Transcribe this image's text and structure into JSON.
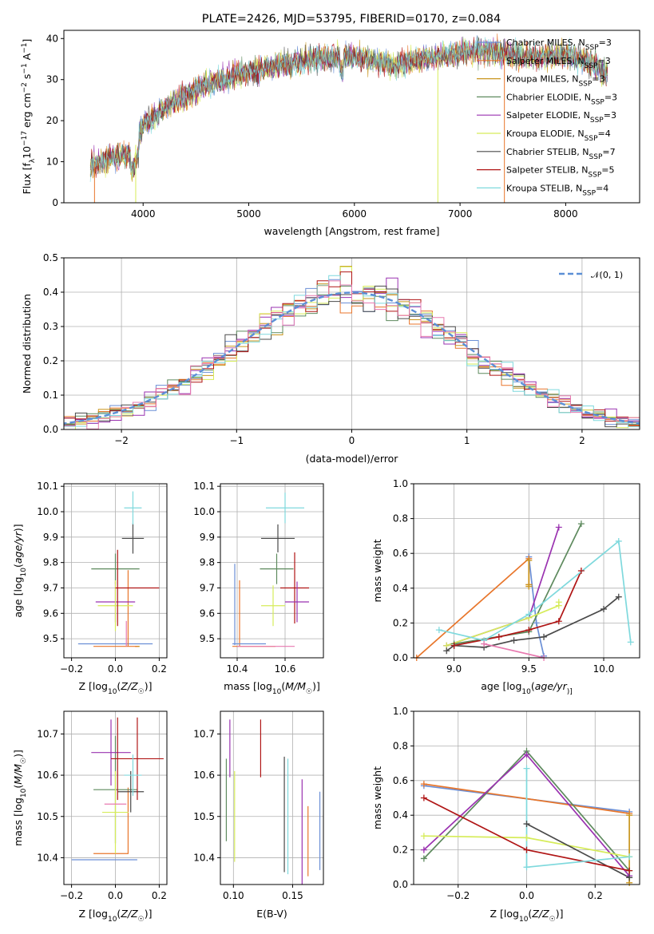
{
  "figure_title": "PLATE=2426, MJD=53795, FIBERID=0170, z=0.084",
  "colors": {
    "Chabrier MILES": "#6b8fd6",
    "Salpeter MILES": "#e8762b",
    "Kroupa MILES": "#c9961f",
    "Chabrier ELODIE": "#5e8a5e",
    "Salpeter ELODIE": "#9a32b0",
    "Kroupa ELODIE": "#d6ec5a",
    "Chabrier STELIB": "#4a4a4a",
    "Salpeter STELIB": "#b01515",
    "Kroupa STELIB": "#7fd9dd",
    "pink": "#e87ab0"
  },
  "chart_data": [
    {
      "id": "spectrum",
      "type": "line",
      "xlabel": "wavelength [Angstrom, rest frame]",
      "ylabel_parts": [
        "Flux [f",
        "λ",
        "10",
        "−17",
        " erg cm",
        "−2",
        " s",
        "−1",
        " A",
        "−1",
        "]"
      ],
      "xlim": [
        3250,
        8700
      ],
      "ylim": [
        0,
        42
      ],
      "xticks": [
        4000,
        5000,
        6000,
        7000,
        8000
      ],
      "yticks": [
        0,
        10,
        20,
        30,
        40
      ],
      "legend_placement": "top-right",
      "legend": [
        {
          "name": "Chabrier MILES",
          "nssp": "3"
        },
        {
          "name": "Salpeter MILES",
          "nssp": "3"
        },
        {
          "name": "Kroupa MILES",
          "nssp": "3"
        },
        {
          "name": "Chabrier ELODIE",
          "nssp": "3"
        },
        {
          "name": "Salpeter ELODIE",
          "nssp": "3"
        },
        {
          "name": "Kroupa ELODIE",
          "nssp": "4"
        },
        {
          "name": "Chabrier STELIB",
          "nssp": "7"
        },
        {
          "name": "Salpeter STELIB",
          "nssp": "5"
        },
        {
          "name": "Kroupa STELIB",
          "nssp": "4"
        }
      ],
      "continuum": {
        "x": [
          3500,
          3700,
          3900,
          4000,
          4200,
          4400,
          4600,
          4800,
          5000,
          5200,
          5400,
          5600,
          5800,
          6000,
          6200,
          6400,
          6600,
          6800,
          7000,
          7200,
          7400,
          7600,
          7800,
          8000,
          8200,
          8400
        ],
        "y": [
          9,
          11,
          12,
          19,
          23,
          26,
          29,
          30.5,
          32,
          33,
          34,
          35,
          35.5,
          35.5,
          34.5,
          33.5,
          35,
          35.5,
          36.5,
          37,
          36.5,
          35.5,
          35.5,
          36,
          34.5,
          31.5
        ]
      },
      "drops": [
        {
          "x": 3540,
          "y": 0,
          "series": "Salpeter MILES"
        },
        {
          "x": 3930,
          "y": 0,
          "series": "Kroupa ELODIE"
        },
        {
          "x": 6790,
          "y": 0,
          "series": "Kroupa ELODIE"
        },
        {
          "x": 7420,
          "y": 0,
          "series": "Salpeter MILES"
        }
      ]
    },
    {
      "id": "residuals",
      "type": "step",
      "xlabel": "(data-model)/error",
      "ylabel": "Normed distribution",
      "xlim": [
        -2.5,
        2.5
      ],
      "ylim": [
        0,
        0.5
      ],
      "xticks": [
        -2,
        -1,
        0,
        1,
        2
      ],
      "yticks": [
        0.0,
        0.1,
        0.2,
        0.3,
        0.4,
        0.5
      ],
      "legend_placement": "top-right",
      "reference_label": "𝒩(0, 1)",
      "reference": {
        "type": "gaussian",
        "mean": 0,
        "sigma": 1
      }
    },
    {
      "id": "age-vs-Z",
      "type": "errorbar",
      "xlabel_parts": [
        "Z [log",
        "10",
        "(",
        "Z/Z",
        "☉",
        ")]"
      ],
      "ylabel_parts": [
        "age  [log",
        "10",
        "(",
        "age/yr",
        ")]"
      ],
      "xlim": [
        -0.235,
        0.235
      ],
      "ylim": [
        9.425,
        10.11
      ],
      "xticks": [
        -0.2,
        0.0,
        0.2
      ],
      "yticks": [
        9.5,
        9.6,
        9.7,
        9.8,
        9.9,
        10.0,
        10.1
      ],
      "points": [
        {
          "series": "Chabrier MILES",
          "x": 0.0,
          "y": 9.48,
          "xerr": 0.17,
          "yerr": 0.0
        },
        {
          "series": "Salpeter MILES",
          "x": 0.1,
          "y": 9.47,
          "xerr": 0.01,
          "yerr": 0.0
        },
        {
          "series": "Kroupa MILES",
          "x": 0.1,
          "y": 9.47,
          "xerr": 0.01,
          "yerr": 0.0
        },
        {
          "series": "Salpeter MILES",
          "x": 0.0,
          "y": 9.47,
          "xerr": 0.1,
          "yerr": 0.0
        },
        {
          "series": "Salpeter MILES",
          "x": 0.058,
          "y": 9.62,
          "xerr": 0.0,
          "yerr": 0.15
        },
        {
          "series": "Chabrier ELODIE",
          "x": 0.0,
          "y": 9.775,
          "xerr": 0.11,
          "yerr": 0.06
        },
        {
          "series": "Salpeter ELODIE",
          "x": 0.0,
          "y": 9.645,
          "xerr": 0.09,
          "yerr": 0.08
        },
        {
          "series": "Kroupa ELODIE",
          "x": 0.0,
          "y": 9.63,
          "xerr": 0.08,
          "yerr": 0.1
        },
        {
          "series": "Chabrier STELIB",
          "x": 0.08,
          "y": 9.895,
          "xerr": 0.05,
          "yerr": 0.06
        },
        {
          "series": "Salpeter STELIB",
          "x": 0.1,
          "y": 9.7,
          "xerr": 0.1,
          "yerr": 0.0
        },
        {
          "series": "Salpeter STELIB",
          "x": 0.01,
          "y": 9.7,
          "xerr": 0.0,
          "yerr": 0.15
        },
        {
          "series": "Kroupa STELIB",
          "x": 0.08,
          "y": 10.015,
          "xerr": 0.04,
          "yerr": 0.065
        },
        {
          "series": "pink",
          "x": 0.05,
          "y": 9.52,
          "xerr": 0.0,
          "yerr": 0.05
        }
      ]
    },
    {
      "id": "age-vs-mass",
      "type": "errorbar",
      "xlabel_parts": [
        "mass [log",
        "10",
        "(",
        "M/M",
        "☉",
        ")]"
      ],
      "xlim": [
        10.33,
        10.76
      ],
      "ylim": [
        9.425,
        10.11
      ],
      "xticks": [
        10.4,
        10.6
      ],
      "yticks": [
        9.5,
        9.6,
        9.7,
        9.8,
        9.9,
        10.0,
        10.1
      ],
      "points": [
        {
          "series": "Chabrier MILES",
          "x": 10.39,
          "y": 9.635,
          "xerr": 0.0,
          "yerr": 0.16
        },
        {
          "series": "Salpeter MILES",
          "x": 10.41,
          "y": 9.6,
          "xerr": 0.0,
          "yerr": 0.13
        },
        {
          "series": "Salpeter MILES",
          "x": 10.47,
          "y": 9.47,
          "xerr": 0.09,
          "yerr": 0.0
        },
        {
          "series": "Chabrier MILES",
          "x": 10.45,
          "y": 9.48,
          "xerr": 0.07,
          "yerr": 0.0
        },
        {
          "series": "pink",
          "x": 10.52,
          "y": 9.47,
          "xerr": 0.12,
          "yerr": 0.0
        },
        {
          "series": "Kroupa ELODIE",
          "x": 10.55,
          "y": 9.63,
          "xerr": 0.05,
          "yerr": 0.08
        },
        {
          "series": "Chabrier ELODIE",
          "x": 10.565,
          "y": 9.775,
          "xerr": 0.07,
          "yerr": 0.06
        },
        {
          "series": "Chabrier STELIB",
          "x": 10.57,
          "y": 9.895,
          "xerr": 0.07,
          "yerr": 0.055
        },
        {
          "series": "Kroupa STELIB",
          "x": 10.6,
          "y": 10.015,
          "xerr": 0.08,
          "yerr": 0.06
        },
        {
          "series": "Salpeter STELIB",
          "x": 10.64,
          "y": 9.7,
          "xerr": 0.06,
          "yerr": 0.14
        },
        {
          "series": "Salpeter ELODIE",
          "x": 10.65,
          "y": 9.645,
          "xerr": 0.05,
          "yerr": 0.08
        }
      ]
    },
    {
      "id": "weight-vs-age",
      "type": "line",
      "xlabel_parts": [
        "age  [log",
        "10",
        "(",
        "age/yr",
        ")]"
      ],
      "ylabel": "mass weight",
      "xlim": [
        8.73,
        10.24
      ],
      "ylim": [
        0,
        1.0
      ],
      "xticks": [
        9.0,
        9.5,
        10.0
      ],
      "yticks": [
        0.0,
        0.2,
        0.4,
        0.6,
        0.8,
        1.0
      ],
      "series": [
        {
          "name": "Chabrier MILES",
          "x": [
            9.5,
            9.55,
            9.6
          ],
          "y": [
            0.58,
            0.2,
            0.01
          ]
        },
        {
          "name": "Salpeter MILES",
          "x": [
            8.75,
            9.5,
            9.5
          ],
          "y": [
            0.0,
            0.57,
            0.42
          ]
        },
        {
          "name": "Kroupa MILES",
          "x": [
            9.5,
            9.5,
            9.5
          ],
          "y": [
            0.56,
            0.42,
            0.41
          ]
        },
        {
          "name": "Chabrier ELODIE",
          "x": [
            9.0,
            9.5,
            9.85
          ],
          "y": [
            0.08,
            0.15,
            0.77
          ]
        },
        {
          "name": "Salpeter ELODIE",
          "x": [
            8.95,
            9.5,
            9.7
          ],
          "y": [
            0.07,
            0.23,
            0.75
          ]
        },
        {
          "name": "Kroupa ELODIE",
          "x": [
            8.95,
            9.5,
            9.7,
            9.7
          ],
          "y": [
            0.07,
            0.23,
            0.3,
            0.32
          ]
        },
        {
          "name": "Chabrier STELIB",
          "x": [
            8.95,
            9.0,
            9.2,
            9.4,
            9.6,
            10.0,
            10.1
          ],
          "y": [
            0.04,
            0.07,
            0.06,
            0.1,
            0.12,
            0.28,
            0.35
          ]
        },
        {
          "name": "Salpeter STELIB",
          "x": [
            9.0,
            9.3,
            9.5,
            9.7,
            9.85
          ],
          "y": [
            0.07,
            0.12,
            0.16,
            0.21,
            0.5
          ]
        },
        {
          "name": "Kroupa STELIB",
          "x": [
            8.9,
            9.2,
            9.5,
            10.1,
            10.18
          ],
          "y": [
            0.16,
            0.1,
            0.25,
            0.67,
            0.09
          ]
        },
        {
          "name": "pink",
          "x": [
            9.2,
            9.6
          ],
          "y": [
            0.08,
            0.0
          ]
        }
      ]
    },
    {
      "id": "mass-vs-Z",
      "type": "errorbar",
      "xlabel_parts": [
        "Z [log",
        "10",
        "(",
        "Z/Z",
        "☉",
        ")]"
      ],
      "ylabel_parts": [
        "mass [log",
        "10",
        "(",
        "M/M",
        "☉",
        ")]"
      ],
      "xlim": [
        -0.235,
        0.235
      ],
      "ylim": [
        10.335,
        10.755
      ],
      "xticks": [
        -0.2,
        0.0,
        0.2
      ],
      "yticks": [
        10.4,
        10.5,
        10.6,
        10.7
      ],
      "points": [
        {
          "series": "Chabrier MILES",
          "x": -0.05,
          "y": 10.395,
          "xerr": 0.15,
          "yerr": 0.0
        },
        {
          "series": "Salpeter MILES",
          "x": 0.058,
          "y": 10.49,
          "xerr": 0.0,
          "yerr": 0.08
        },
        {
          "series": "Salpeter MILES",
          "x": -0.02,
          "y": 10.41,
          "xerr": 0.08,
          "yerr": 0.0
        },
        {
          "series": "Chabrier ELODIE",
          "x": 0.0,
          "y": 10.565,
          "xerr": 0.1,
          "yerr": 0.13
        },
        {
          "series": "Salpeter ELODIE",
          "x": -0.02,
          "y": 10.655,
          "xerr": 0.09,
          "yerr": 0.08
        },
        {
          "series": "Kroupa ELODIE",
          "x": 0.0,
          "y": 10.51,
          "xerr": 0.06,
          "yerr": 0.1
        },
        {
          "series": "Chabrier STELIB",
          "x": 0.07,
          "y": 10.56,
          "xerr": 0.06,
          "yerr": 0.05
        },
        {
          "series": "Salpeter STELIB",
          "x": 0.1,
          "y": 10.64,
          "xerr": 0.12,
          "yerr": 0.1
        },
        {
          "series": "Salpeter STELIB",
          "x": 0.01,
          "y": 10.64,
          "xerr": 0.0,
          "yerr": 0.1
        },
        {
          "series": "Kroupa STELIB",
          "x": 0.08,
          "y": 10.6,
          "xerr": 0.04,
          "yerr": 0.05
        },
        {
          "series": "pink",
          "x": 0.0,
          "y": 10.53,
          "xerr": 0.05,
          "yerr": 0.0
        }
      ]
    },
    {
      "id": "mass-vs-EBV",
      "type": "errorbar",
      "xlabel": "E(B-V)",
      "xlim": [
        0.089,
        0.176
      ],
      "ylim": [
        10.335,
        10.755
      ],
      "xticks": [
        0.1,
        0.15
      ],
      "yticks": [
        10.4,
        10.5,
        10.6,
        10.7
      ],
      "points": [
        {
          "series": "Chabrier ELODIE",
          "x": 0.094,
          "y": 10.54,
          "xerr": 0.0,
          "yerr": 0.1
        },
        {
          "series": "Salpeter ELODIE",
          "x": 0.097,
          "y": 10.665,
          "xerr": 0.0,
          "yerr": 0.07
        },
        {
          "series": "Kroupa ELODIE",
          "x": 0.101,
          "y": 10.5,
          "xerr": 0.0,
          "yerr": 0.11
        },
        {
          "series": "Salpeter STELIB",
          "x": 0.123,
          "y": 10.665,
          "xerr": 0.0,
          "yerr": 0.07
        },
        {
          "series": "Chabrier STELIB",
          "x": 0.143,
          "y": 10.505,
          "xerr": 0.0,
          "yerr": 0.14
        },
        {
          "series": "Kroupa STELIB",
          "x": 0.146,
          "y": 10.5,
          "xerr": 0.0,
          "yerr": 0.14
        },
        {
          "series": "Salpeter ELODIE",
          "x": 0.158,
          "y": 10.45,
          "xerr": 0.0,
          "yerr": 0.14
        },
        {
          "series": "Salpeter MILES",
          "x": 0.163,
          "y": 10.44,
          "xerr": 0.0,
          "yerr": 0.085
        },
        {
          "series": "Chabrier MILES",
          "x": 0.173,
          "y": 10.465,
          "xerr": 0.0,
          "yerr": 0.095
        }
      ]
    },
    {
      "id": "weight-vs-Z",
      "type": "line",
      "xlabel_parts": [
        "Z [log",
        "10",
        "(",
        "Z/Z",
        "☉",
        ")]"
      ],
      "ylabel": "mass weight",
      "xlim": [
        -0.33,
        0.33
      ],
      "ylim": [
        0,
        1.0
      ],
      "xticks": [
        -0.2,
        0.0,
        0.2
      ],
      "yticks": [
        0.0,
        0.2,
        0.4,
        0.6,
        0.8,
        1.0
      ],
      "series": [
        {
          "name": "Chabrier MILES",
          "x": [
            -0.3,
            0.3
          ],
          "y": [
            0.57,
            0.42
          ]
        },
        {
          "name": "Salpeter MILES",
          "x": [
            -0.3,
            0.3
          ],
          "y": [
            0.58,
            0.41
          ]
        },
        {
          "name": "Kroupa MILES",
          "x": [
            0.3,
            0.3
          ],
          "y": [
            0.4,
            0.01
          ]
        },
        {
          "name": "Chabrier ELODIE",
          "x": [
            -0.3,
            0.0,
            0.3
          ],
          "y": [
            0.15,
            0.77,
            0.08
          ]
        },
        {
          "name": "Salpeter ELODIE",
          "x": [
            -0.3,
            0.0,
            0.3
          ],
          "y": [
            0.2,
            0.75,
            0.05
          ]
        },
        {
          "name": "Kroupa ELODIE",
          "x": [
            -0.3,
            0.0,
            0.3
          ],
          "y": [
            0.28,
            0.27,
            0.16
          ]
        },
        {
          "name": "Chabrier STELIB",
          "x": [
            0.0,
            0.3
          ],
          "y": [
            0.35,
            0.04
          ]
        },
        {
          "name": "Salpeter STELIB",
          "x": [
            -0.3,
            0.0,
            0.3
          ],
          "y": [
            0.5,
            0.2,
            0.08
          ]
        },
        {
          "name": "Kroupa STELIB",
          "x": [
            0.0,
            0.0,
            0.3
          ],
          "y": [
            0.67,
            0.1,
            0.16
          ]
        }
      ]
    }
  ]
}
